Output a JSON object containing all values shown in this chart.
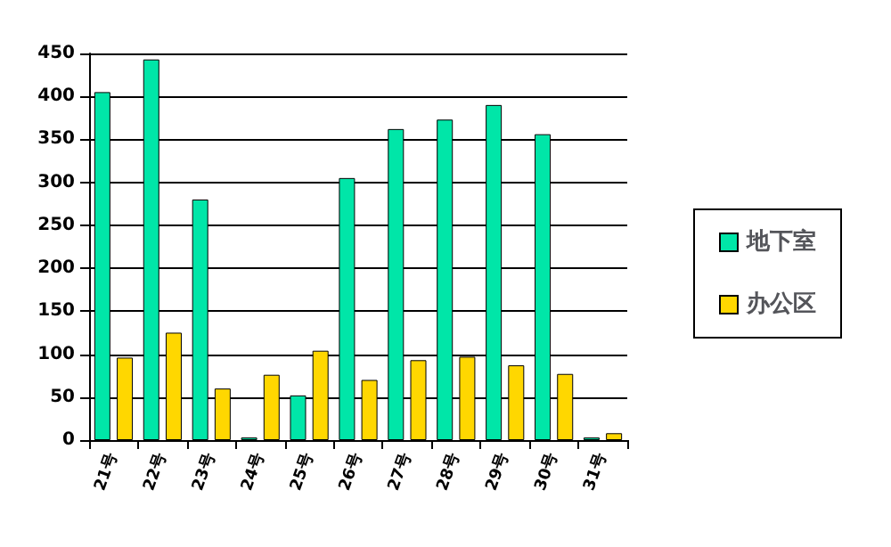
{
  "chart_data": {
    "type": "bar",
    "categories": [
      "21号",
      "22号",
      "23号",
      "24号",
      "25号",
      "26号",
      "27号",
      "28号",
      "29号",
      "30号",
      "31号"
    ],
    "series": [
      {
        "name": "地下室",
        "color": "#00e6a8",
        "values": [
          405,
          443,
          280,
          3,
          52,
          305,
          362,
          373,
          390,
          356,
          3
        ]
      },
      {
        "name": "办公区",
        "color": "#ffd700",
        "values": [
          96,
          125,
          60,
          76,
          104,
          70,
          93,
          97,
          87,
          77,
          8
        ]
      }
    ],
    "ylim": [
      0,
      450
    ],
    "yticks": [
      0,
      50,
      100,
      150,
      200,
      250,
      300,
      350,
      400,
      450
    ],
    "grid": "y",
    "legend": "right"
  }
}
